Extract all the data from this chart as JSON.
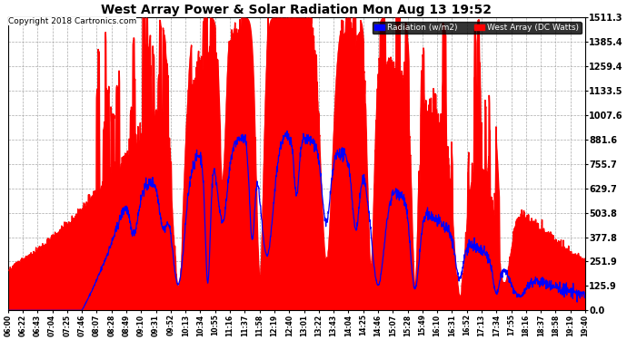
{
  "title": "West Array Power & Solar Radiation Mon Aug 13 19:52",
  "copyright": "Copyright 2018 Cartronics.com",
  "legend_labels": [
    "Radiation (w/m2)",
    "West Array (DC Watts)"
  ],
  "legend_colors": [
    "#0000ff",
    "#ff0000"
  ],
  "y_ticks": [
    0.0,
    125.9,
    251.9,
    377.8,
    503.8,
    629.7,
    755.7,
    881.6,
    1007.6,
    1133.5,
    1259.4,
    1385.4,
    1511.3
  ],
  "y_max": 1511.3,
  "y_min": 0.0,
  "background_color": "#ffffff",
  "plot_bg_color": "#ffffff",
  "grid_color": "#aaaaaa",
  "fill_color": "#ff0000",
  "line_color": "#0000ff",
  "x_labels": [
    "06:00",
    "06:22",
    "06:43",
    "07:04",
    "07:25",
    "07:46",
    "08:07",
    "08:28",
    "08:49",
    "09:10",
    "09:31",
    "09:52",
    "10:13",
    "10:34",
    "10:55",
    "11:16",
    "11:37",
    "11:58",
    "12:19",
    "12:40",
    "13:01",
    "13:22",
    "13:43",
    "14:04",
    "14:25",
    "14:46",
    "15:07",
    "15:28",
    "15:49",
    "16:10",
    "16:31",
    "16:52",
    "17:13",
    "17:34",
    "17:55",
    "18:16",
    "18:37",
    "18:58",
    "19:19",
    "19:40"
  ]
}
